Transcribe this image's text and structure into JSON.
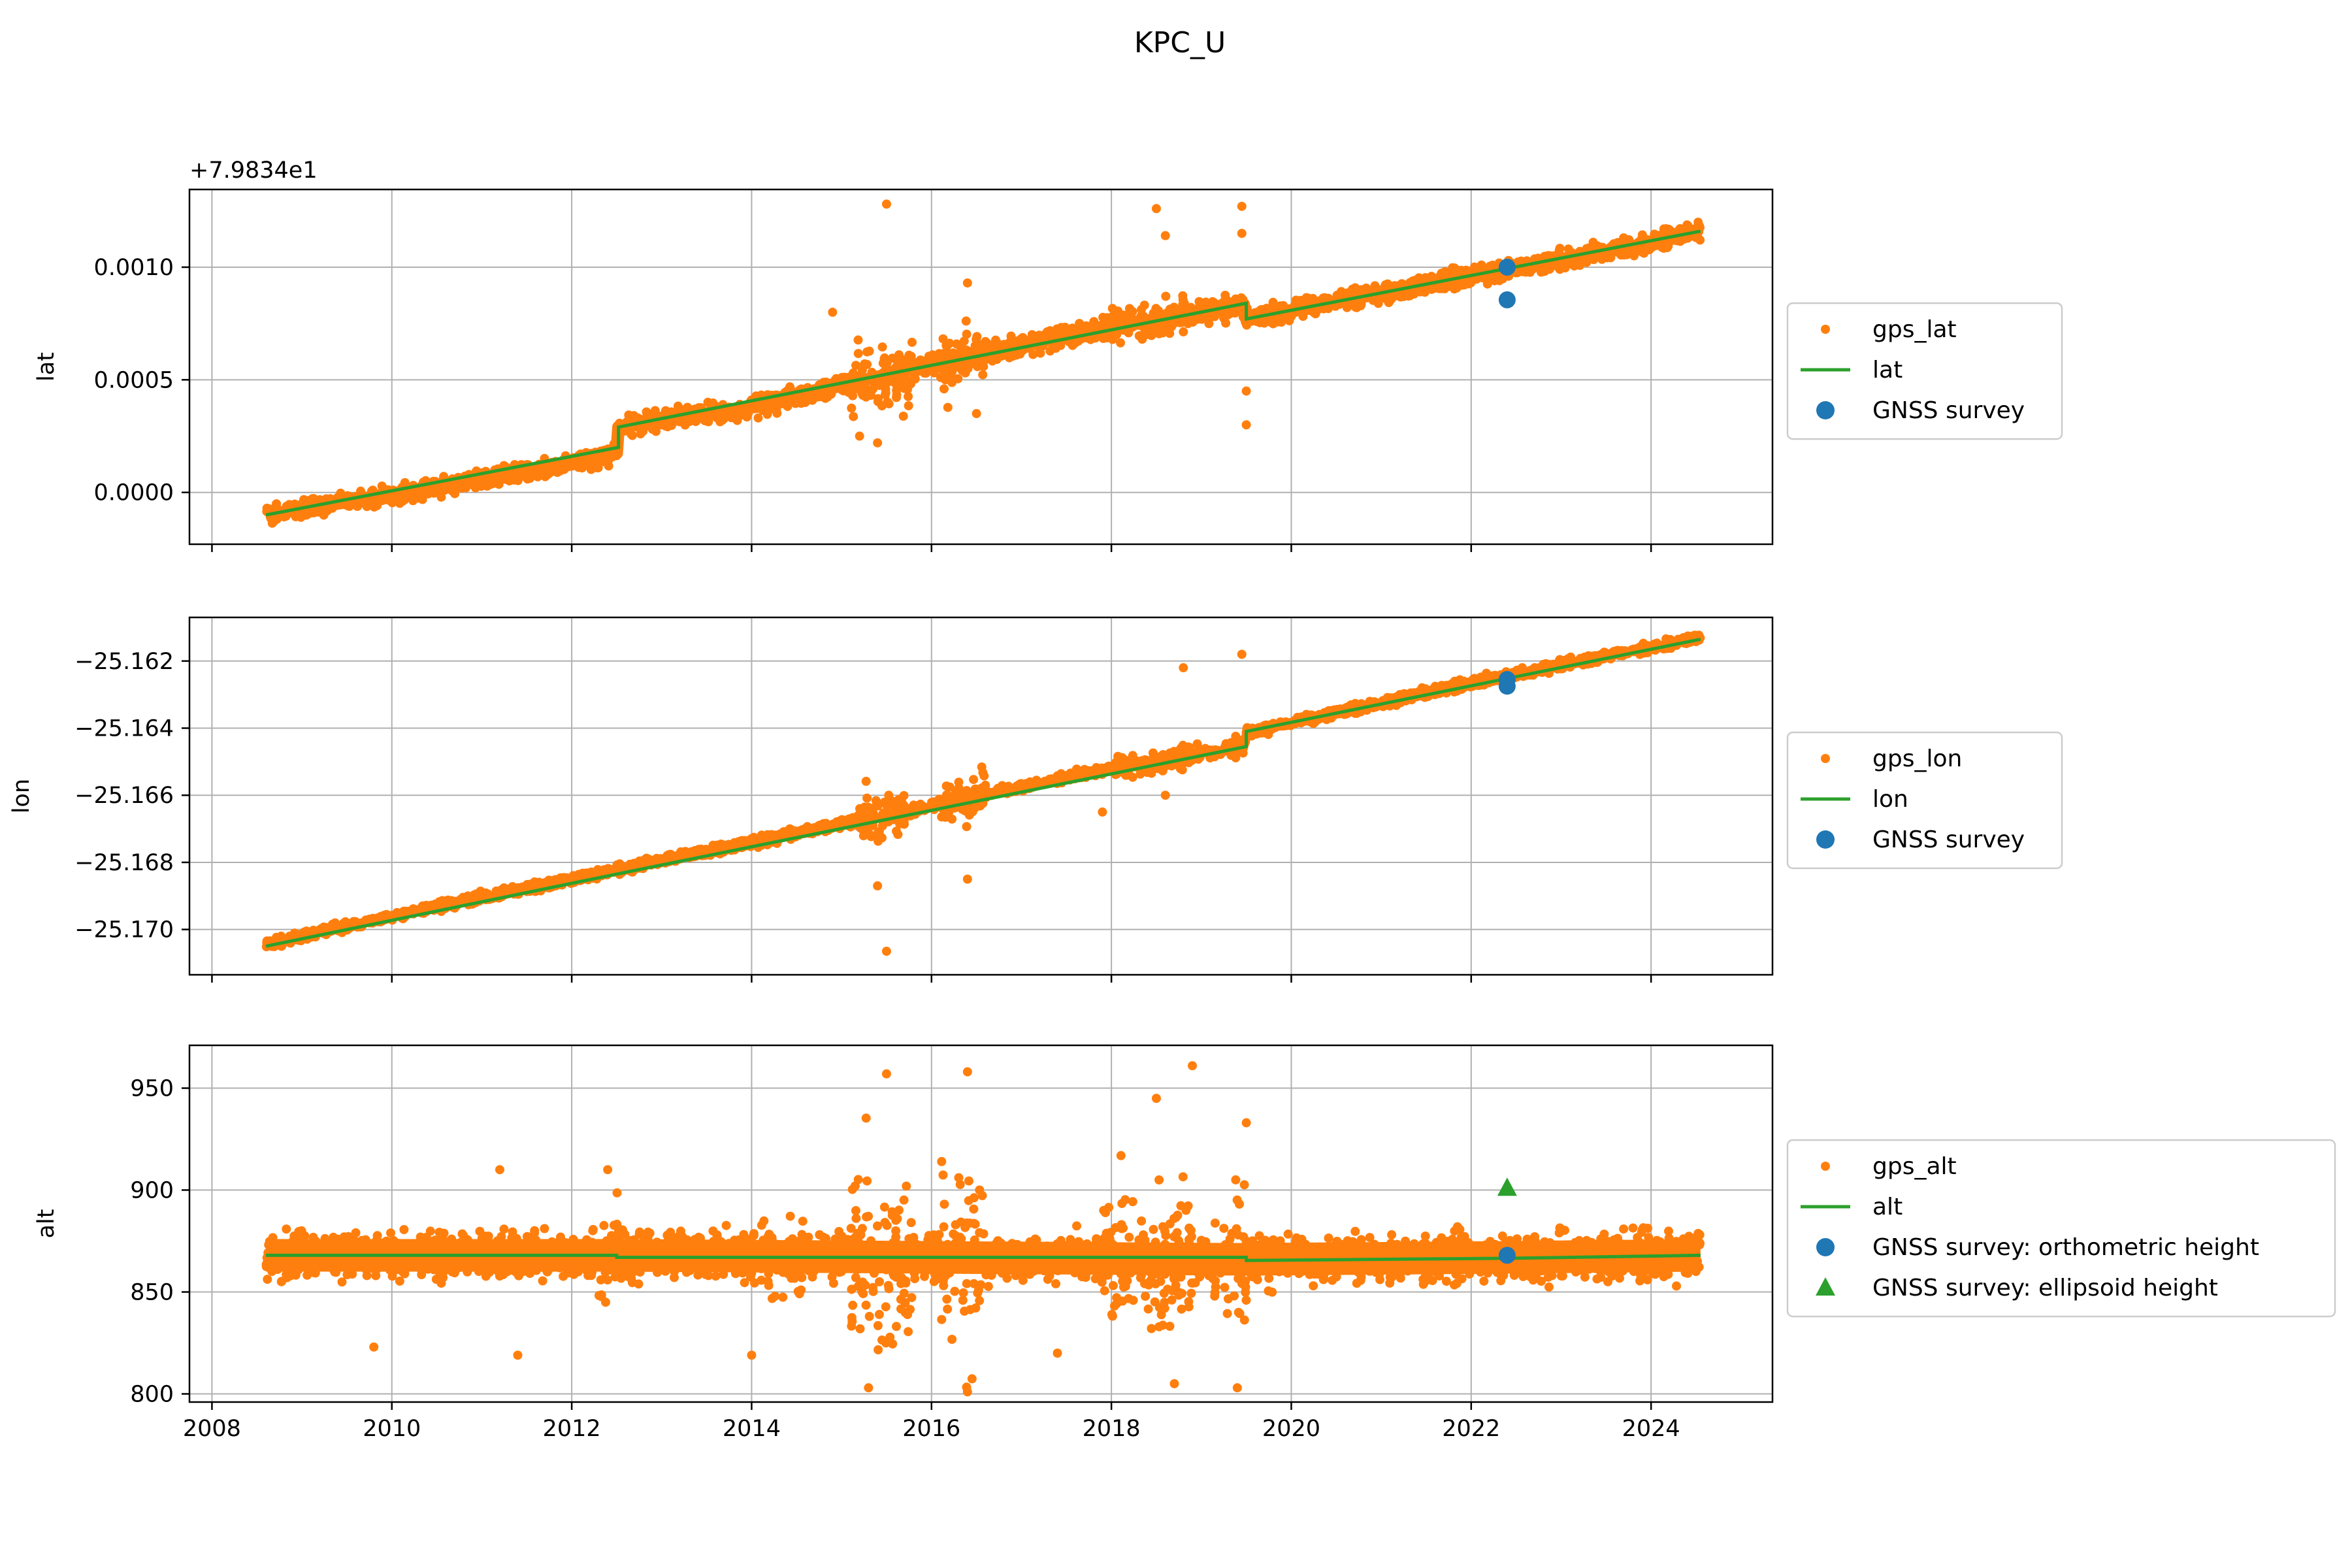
{
  "figure": {
    "title": "KPC_U"
  },
  "colors": {
    "gps": "#ff7f0e",
    "fit": "#2ca02c",
    "survey": "#1f77b4",
    "grid": "#b0b0b0",
    "axis": "#000000"
  },
  "chart_data": [
    {
      "type": "scatter",
      "ylabel": "lat",
      "offset_label": "+7.9834e1",
      "xlim": [
        2007.75,
        2025.35
      ],
      "ylim": [
        -0.00023,
        0.001345
      ],
      "xticks": [
        "2008",
        "2010",
        "2012",
        "2014",
        "2016",
        "2018",
        "2020",
        "2022",
        "2024"
      ],
      "xtick_values": [
        2008,
        2010,
        2012,
        2014,
        2016,
        2018,
        2020,
        2022,
        2024
      ],
      "show_xticklabels": false,
      "yticks": [
        "0.0000",
        "0.0005",
        "0.0010"
      ],
      "ytick_values": [
        0,
        0.0005,
        0.001
      ],
      "grid": true,
      "legend": {
        "position": "right",
        "entries": [
          {
            "label": "gps_lat",
            "marker": "dot"
          },
          {
            "label": "lat",
            "marker": "line"
          },
          {
            "label": "GNSS survey",
            "marker": "circle"
          }
        ]
      },
      "gps_band": [
        [
          2008.6,
          -0.0001
        ],
        [
          2010,
          -1e-05
        ],
        [
          2012,
          0.000125
        ],
        [
          2012.5,
          0.000175
        ],
        [
          2012.52,
          0.00029
        ],
        [
          2014,
          0.00038
        ],
        [
          2016,
          0.00057
        ],
        [
          2018,
          0.000735
        ],
        [
          2019.47,
          0.000835
        ],
        [
          2019.5,
          0.00077
        ],
        [
          2020,
          0.000805
        ],
        [
          2022,
          0.000965
        ],
        [
          2024,
          0.001105
        ],
        [
          2024.55,
          0.001165
        ]
      ],
      "gps_spread": 3.5e-05,
      "gps_noise_regions": [
        {
          "x": [
            2015.1,
            2015.8
          ],
          "spread": 0.00018
        },
        {
          "x": [
            2016.1,
            2016.6
          ],
          "spread": 0.00015
        },
        {
          "x": [
            2017.9,
            2019.3
          ],
          "spread": 8e-05
        }
      ],
      "gps_outliers": [
        [
          2015.5,
          0.00128
        ],
        [
          2016.4,
          0.00093
        ],
        [
          2018.5,
          0.00126
        ],
        [
          2018.6,
          0.00114
        ],
        [
          2019.45,
          0.00127
        ],
        [
          2019.45,
          0.00115
        ],
        [
          2019.5,
          0.00045
        ],
        [
          2019.5,
          0.0003
        ],
        [
          2015.4,
          0.00022
        ],
        [
          2016.5,
          0.00035
        ],
        [
          2014.9,
          0.0008
        ],
        [
          2015.2,
          0.00025
        ]
      ],
      "series": [
        {
          "name": "lat",
          "x": [
            2008.6,
            2012.52,
            2012.52,
            2019.5,
            2019.5,
            2024.55
          ],
          "y": [
            -0.0001,
            0.0002,
            0.00029,
            0.00084,
            0.00077,
            0.00116
          ]
        }
      ],
      "survey": [
        {
          "x": 2022.4,
          "y": 0.001
        },
        {
          "x": 2022.4,
          "y": 0.000855
        }
      ]
    },
    {
      "type": "scatter",
      "ylabel": "lon",
      "xlim": [
        2007.75,
        2025.35
      ],
      "ylim": [
        -25.17135,
        -25.1607
      ],
      "xticks": [
        "2008",
        "2010",
        "2012",
        "2014",
        "2016",
        "2018",
        "2020",
        "2022",
        "2024"
      ],
      "xtick_values": [
        2008,
        2010,
        2012,
        2014,
        2016,
        2018,
        2020,
        2022,
        2024
      ],
      "show_xticklabels": false,
      "yticks": [
        "−25.170",
        "−25.168",
        "−25.166",
        "−25.164",
        "−25.162"
      ],
      "ytick_values": [
        -25.17,
        -25.168,
        -25.166,
        -25.164,
        -25.162
      ],
      "grid": true,
      "legend": {
        "position": "right",
        "entries": [
          {
            "label": "gps_lon",
            "marker": "dot"
          },
          {
            "label": "lon",
            "marker": "line"
          },
          {
            "label": "GNSS survey",
            "marker": "circle"
          }
        ]
      },
      "gps_band": [
        [
          2008.6,
          -25.17045
        ],
        [
          2010,
          -25.1696
        ],
        [
          2012,
          -25.1685
        ],
        [
          2014,
          -25.1674
        ],
        [
          2016,
          -25.1663
        ],
        [
          2018,
          -25.1652
        ],
        [
          2019.47,
          -25.16455
        ],
        [
          2019.5,
          -25.16415
        ],
        [
          2022,
          -25.16265
        ],
        [
          2024.55,
          -25.1613
        ]
      ],
      "gps_spread": 0.00012,
      "gps_noise_regions": [
        {
          "x": [
            2015.2,
            2015.7
          ],
          "spread": 0.0009
        },
        {
          "x": [
            2016.1,
            2016.6
          ],
          "spread": 0.0008
        },
        {
          "x": [
            2018.0,
            2019.4
          ],
          "spread": 0.0004
        }
      ],
      "gps_outliers": [
        [
          2015.5,
          -25.17065
        ],
        [
          2018.8,
          -25.1622
        ],
        [
          2019.45,
          -25.1618
        ],
        [
          2016.4,
          -25.1685
        ],
        [
          2017.9,
          -25.1665
        ],
        [
          2015.4,
          -25.1687
        ],
        [
          2018.6,
          -25.166
        ]
      ],
      "series": [
        {
          "name": "lon",
          "x": [
            2008.6,
            2012.5,
            2019.5,
            2019.5,
            2024.55
          ],
          "y": [
            -25.1705,
            -25.16835,
            -25.16455,
            -25.1641,
            -25.16135
          ]
        }
      ],
      "survey": [
        {
          "x": 2022.4,
          "y": -25.16255
        },
        {
          "x": 2022.4,
          "y": -25.16275
        }
      ]
    },
    {
      "type": "scatter",
      "ylabel": "alt",
      "xlim": [
        2007.75,
        2025.35
      ],
      "ylim": [
        796,
        971
      ],
      "xticks": [
        "2008",
        "2010",
        "2012",
        "2014",
        "2016",
        "2018",
        "2020",
        "2022",
        "2024"
      ],
      "xtick_values": [
        2008,
        2010,
        2012,
        2014,
        2016,
        2018,
        2020,
        2022,
        2024
      ],
      "show_xticklabels": true,
      "yticks": [
        "800",
        "850",
        "900",
        "950"
      ],
      "ytick_values": [
        800,
        850,
        900,
        950
      ],
      "grid": true,
      "legend": {
        "position": "right",
        "entries": [
          {
            "label": "gps_alt",
            "marker": "dot"
          },
          {
            "label": "alt",
            "marker": "line"
          },
          {
            "label": "GNSS survey: orthometric height",
            "marker": "circle"
          },
          {
            "label": "GNSS survey: ellipsoid height",
            "marker": "triangle"
          }
        ]
      },
      "gps_band": [
        [
          2008.6,
          868
        ],
        [
          2012.5,
          868
        ],
        [
          2019.5,
          866
        ],
        [
          2022.4,
          867
        ],
        [
          2024.55,
          868
        ]
      ],
      "gps_spread": 10,
      "gps_noise_regions": [
        {
          "x": [
            2015.1,
            2015.8
          ],
          "spread": 55
        },
        {
          "x": [
            2016.1,
            2016.6
          ],
          "spread": 60
        },
        {
          "x": [
            2017.9,
            2018.9
          ],
          "spread": 40
        },
        {
          "x": [
            2019.1,
            2019.5
          ],
          "spread": 45
        },
        {
          "x": [
            2012.2,
            2012.6
          ],
          "spread": 25
        },
        {
          "x": [
            2014.1,
            2014.6
          ],
          "spread": 20
        }
      ],
      "gps_outliers": [
        [
          2015.5,
          957
        ],
        [
          2016.4,
          958
        ],
        [
          2018.9,
          961
        ],
        [
          2018.5,
          945
        ],
        [
          2019.5,
          933
        ],
        [
          2011.2,
          910
        ],
        [
          2009.8,
          823
        ],
        [
          2011.4,
          819
        ],
        [
          2014.0,
          819
        ],
        [
          2017.4,
          820
        ],
        [
          2012.4,
          910
        ],
        [
          2015.3,
          803
        ],
        [
          2016.4,
          801
        ],
        [
          2018.7,
          805
        ],
        [
          2019.4,
          803
        ]
      ],
      "series": [
        {
          "name": "alt",
          "x": [
            2008.6,
            2012.5,
            2012.5,
            2019.5,
            2019.5,
            2022.4,
            2024.55
          ],
          "y": [
            868,
            868,
            867,
            867,
            865.5,
            866.5,
            868
          ]
        }
      ],
      "survey": [
        {
          "x": 2022.4,
          "y": 868
        }
      ],
      "survey_ellipsoid": [
        {
          "x": 2022.4,
          "y": 901
        }
      ]
    }
  ]
}
